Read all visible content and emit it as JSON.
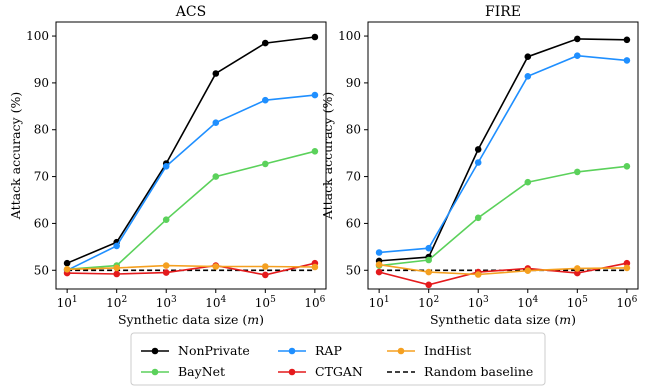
{
  "chart_data": [
    {
      "type": "line",
      "title": "ACS",
      "xlabel": "Synthetic data size (m)",
      "ylabel": "Attack accuracy (%)",
      "xscale": "log",
      "x": [
        10,
        100,
        1000,
        10000,
        100000,
        1000000
      ],
      "x_tick_labels": [
        "10^1",
        "10^2",
        "10^3",
        "10^4",
        "10^5",
        "10^6"
      ],
      "ylim": [
        46,
        103
      ],
      "y_ticks": [
        50,
        60,
        70,
        80,
        90,
        100
      ],
      "grid": false,
      "series": [
        {
          "name": "NonPrivate",
          "color": "#000000",
          "values": [
            51.5,
            56.0,
            72.8,
            92.0,
            98.5,
            99.8
          ]
        },
        {
          "name": "RAP",
          "color": "#1f8fff",
          "values": [
            50.0,
            55.2,
            72.2,
            81.5,
            86.3,
            87.4
          ]
        },
        {
          "name": "BayNet",
          "color": "#5bd15b",
          "values": [
            50.2,
            51.0,
            60.8,
            70.0,
            72.7,
            75.4
          ]
        },
        {
          "name": "CTGAN",
          "color": "#e41a1c",
          "values": [
            49.4,
            49.2,
            49.5,
            51.0,
            49.0,
            51.5
          ]
        },
        {
          "name": "IndHist",
          "color": "#f5a020",
          "values": [
            50.2,
            50.5,
            51.0,
            50.8,
            50.8,
            50.7
          ]
        },
        {
          "name": "Random baseline",
          "color": "#000000",
          "dashed": true,
          "values": [
            50,
            50,
            50,
            50,
            50,
            50
          ]
        }
      ]
    },
    {
      "type": "line",
      "title": "FIRE",
      "xlabel": "Synthetic data size (m)",
      "ylabel": "Attack accuracy (%)",
      "xscale": "log",
      "x": [
        10,
        100,
        1000,
        10000,
        100000,
        1000000
      ],
      "x_tick_labels": [
        "10^1",
        "10^2",
        "10^3",
        "10^4",
        "10^5",
        "10^6"
      ],
      "ylim": [
        46,
        103
      ],
      "y_ticks": [
        50,
        60,
        70,
        80,
        90,
        100
      ],
      "grid": false,
      "series": [
        {
          "name": "NonPrivate",
          "color": "#000000",
          "values": [
            52.0,
            52.8,
            75.8,
            95.6,
            99.4,
            99.2
          ]
        },
        {
          "name": "RAP",
          "color": "#1f8fff",
          "values": [
            53.8,
            54.7,
            73.0,
            91.4,
            95.8,
            94.8
          ]
        },
        {
          "name": "BayNet",
          "color": "#5bd15b",
          "values": [
            51.0,
            52.2,
            61.2,
            68.8,
            71.0,
            72.2
          ]
        },
        {
          "name": "CTGAN",
          "color": "#e41a1c",
          "values": [
            49.6,
            46.9,
            49.6,
            50.4,
            49.4,
            51.5
          ]
        },
        {
          "name": "IndHist",
          "color": "#f5a020",
          "values": [
            51.2,
            49.6,
            49.1,
            49.9,
            50.4,
            50.5
          ]
        },
        {
          "name": "Random baseline",
          "color": "#000000",
          "dashed": true,
          "values": [
            50,
            50,
            50,
            50,
            50,
            50
          ]
        }
      ]
    }
  ],
  "legend": {
    "placement": "bottom-center",
    "entries": [
      {
        "name": "NonPrivate",
        "color": "#000000",
        "dashed": false
      },
      {
        "name": "RAP",
        "color": "#1f8fff",
        "dashed": false
      },
      {
        "name": "IndHist",
        "color": "#f5a020",
        "dashed": false
      },
      {
        "name": "BayNet",
        "color": "#5bd15b",
        "dashed": false
      },
      {
        "name": "CTGAN",
        "color": "#e41a1c",
        "dashed": false
      },
      {
        "name": "Random baseline",
        "color": "#000000",
        "dashed": true
      }
    ]
  }
}
